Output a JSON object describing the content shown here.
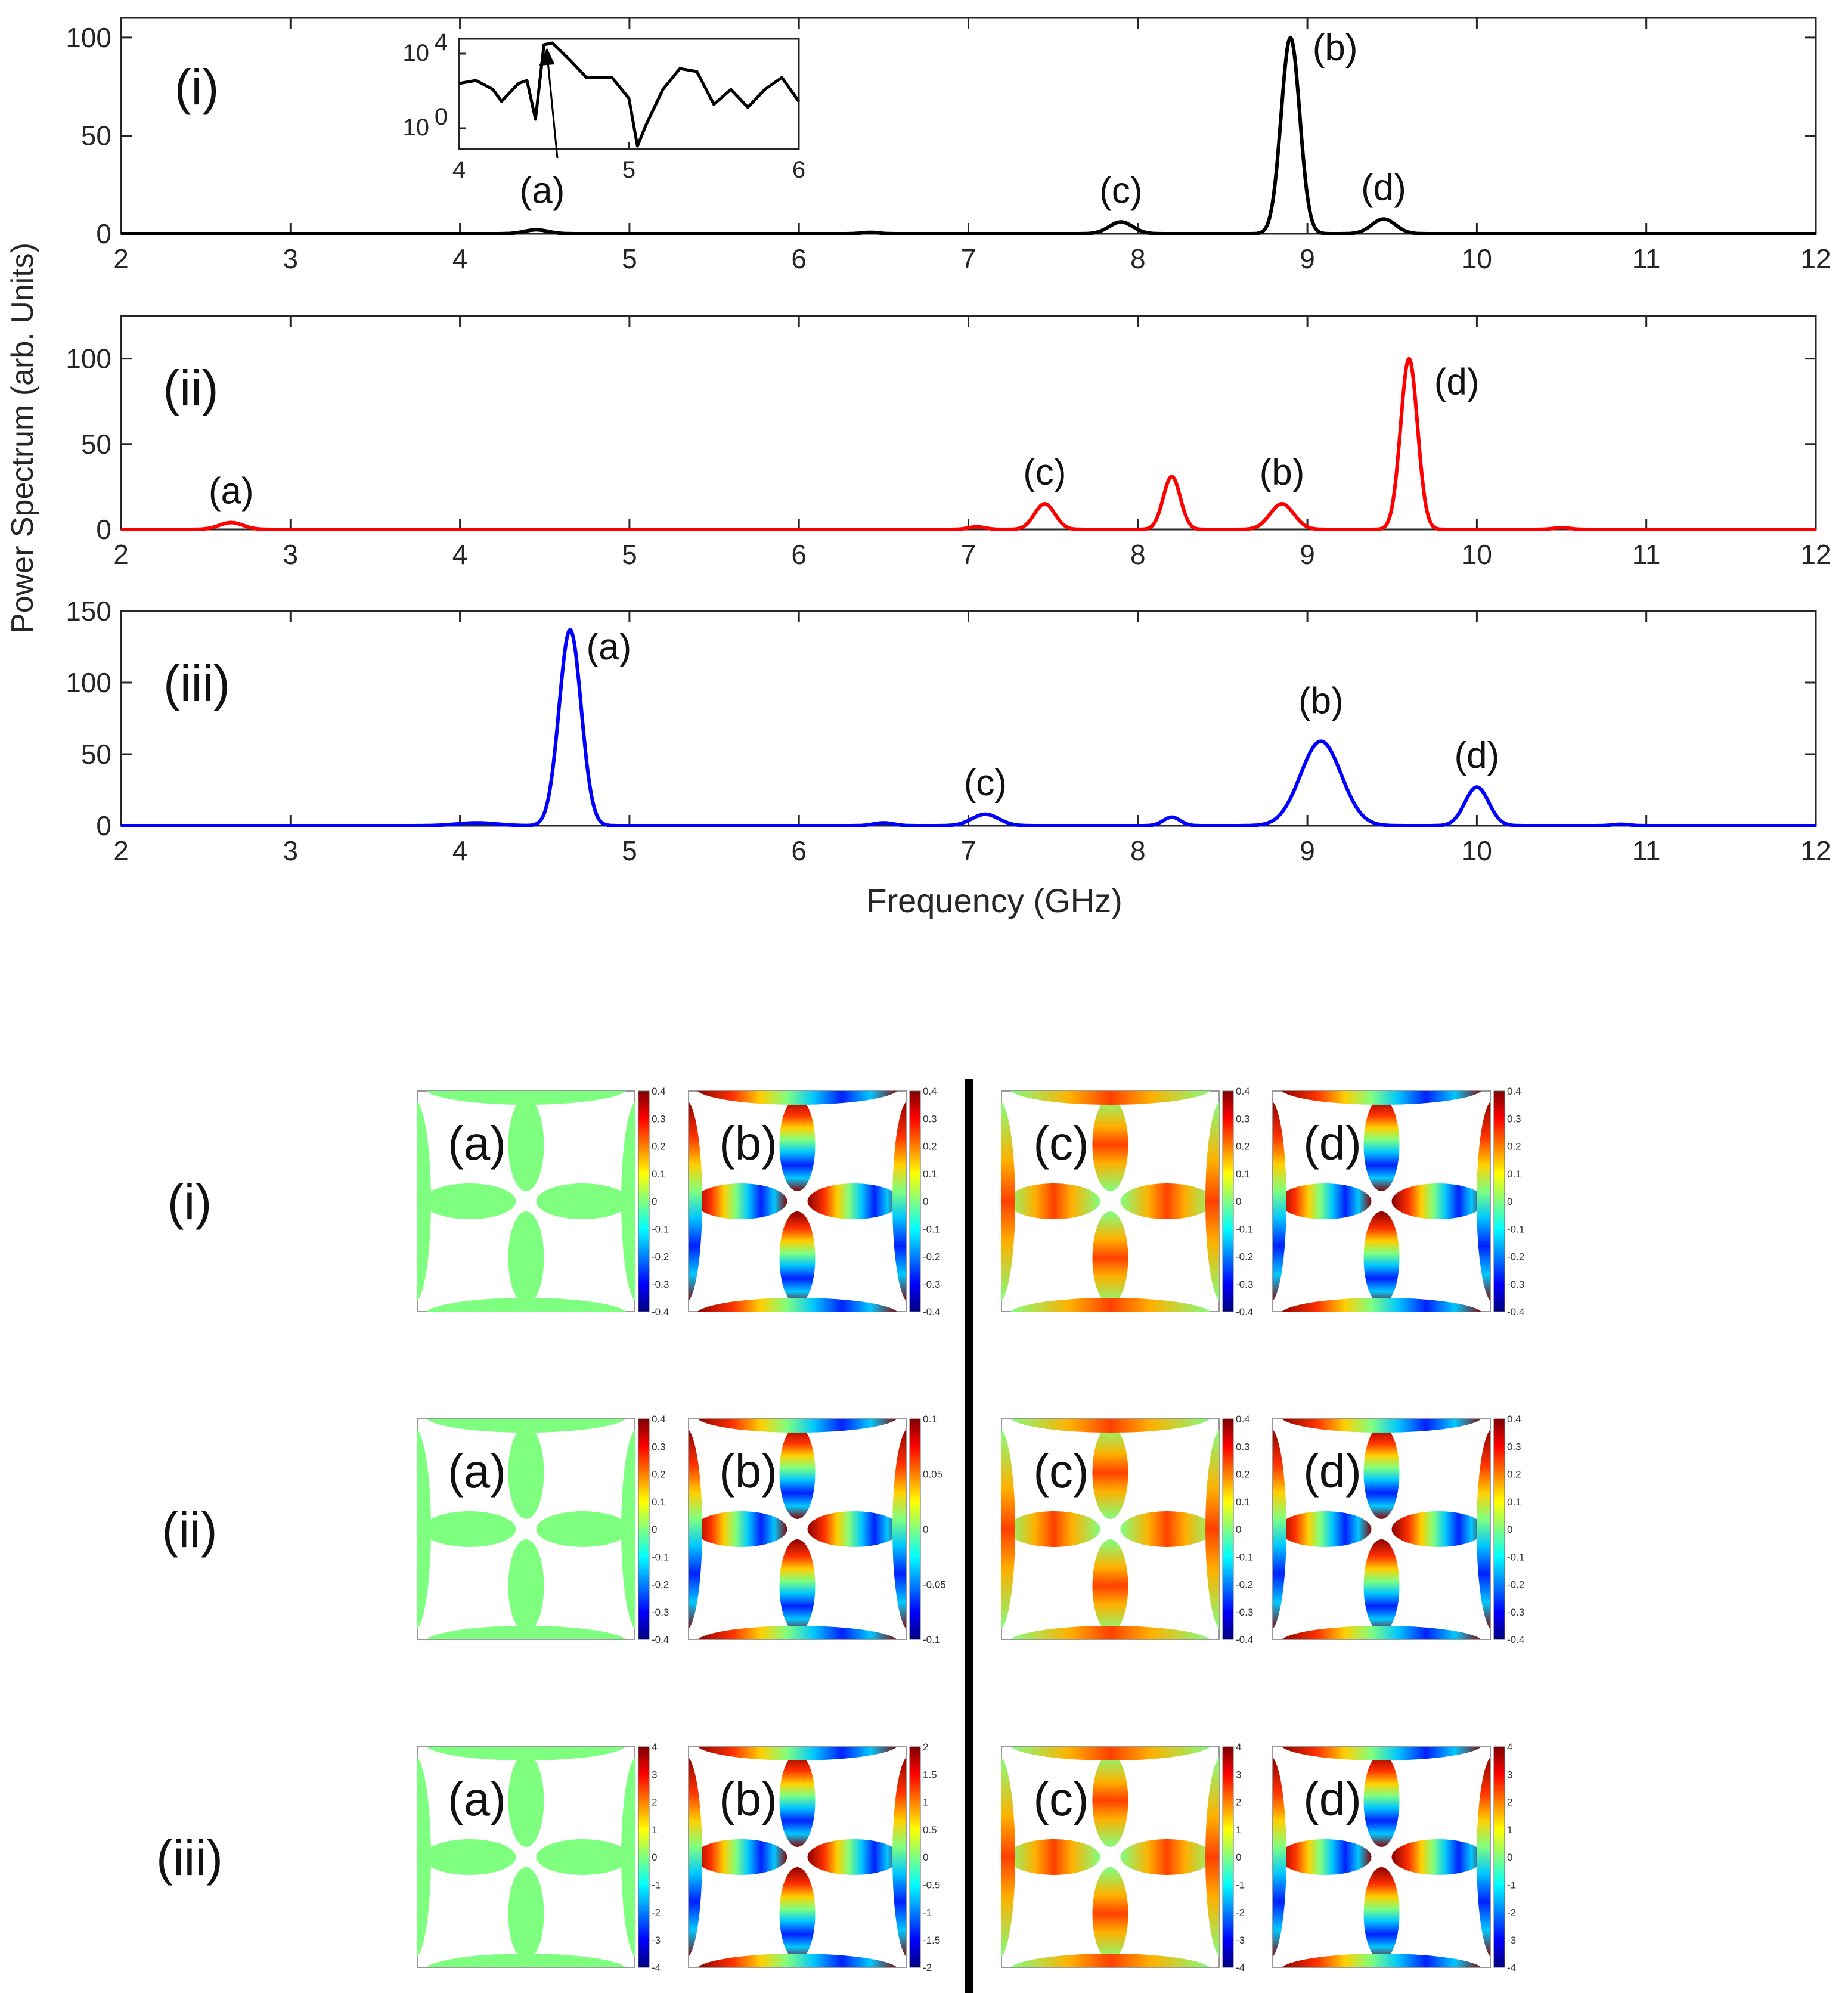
{
  "chart_data": [
    {
      "type": "line",
      "panel_label": "(i)",
      "color": "#000000",
      "xlim": [
        2,
        12
      ],
      "ylim": [
        0,
        110
      ],
      "yticks": [
        0,
        50,
        100
      ],
      "xticks": [
        2,
        3,
        4,
        5,
        6,
        7,
        8,
        9,
        10,
        11,
        12
      ],
      "peaks": [
        {
          "label": "(a)",
          "x": 4.45,
          "y": 2,
          "width": 0.07
        },
        {
          "label": "",
          "x": 6.42,
          "y": 0.7,
          "width": 0.05
        },
        {
          "label": "(c)",
          "x": 7.9,
          "y": 6,
          "width": 0.07
        },
        {
          "label": "(b)",
          "x": 8.9,
          "y": 100,
          "width": 0.055
        },
        {
          "label": "(d)",
          "x": 9.45,
          "y": 7.5,
          "width": 0.07
        }
      ],
      "inset": {
        "xlim": [
          4,
          6
        ],
        "xticks": [
          4,
          5,
          6
        ],
        "yticks": [
          "10^4",
          "10^0"
        ],
        "annotation": "(a)",
        "annotation_x": 4.5
      }
    },
    {
      "type": "line",
      "panel_label": "(ii)",
      "color": "#ff0000",
      "xlim": [
        2,
        12
      ],
      "ylim": [
        0,
        125
      ],
      "yticks": [
        0,
        50,
        100
      ],
      "xticks": [
        2,
        3,
        4,
        5,
        6,
        7,
        8,
        9,
        10,
        11,
        12
      ],
      "peaks": [
        {
          "label": "(a)",
          "x": 2.65,
          "y": 4,
          "width": 0.07
        },
        {
          "label": "",
          "x": 7.05,
          "y": 1.5,
          "width": 0.05
        },
        {
          "label": "(c)",
          "x": 7.45,
          "y": 15,
          "width": 0.06
        },
        {
          "label": "",
          "x": 8.2,
          "y": 31,
          "width": 0.05
        },
        {
          "label": "(b)",
          "x": 8.85,
          "y": 15,
          "width": 0.07
        },
        {
          "label": "(d)",
          "x": 9.6,
          "y": 100,
          "width": 0.05
        },
        {
          "label": "",
          "x": 10.5,
          "y": 1,
          "width": 0.05
        }
      ]
    },
    {
      "type": "line",
      "panel_label": "(iii)",
      "color": "#0000ff",
      "xlim": [
        2,
        12
      ],
      "ylim": [
        0,
        150
      ],
      "yticks": [
        0,
        50,
        100,
        150
      ],
      "xticks": [
        2,
        3,
        4,
        5,
        6,
        7,
        8,
        9,
        10,
        11,
        12
      ],
      "peaks": [
        {
          "label": "",
          "x": 4.1,
          "y": 2,
          "width": 0.12
        },
        {
          "label": "(a)",
          "x": 4.65,
          "y": 137,
          "width": 0.065
        },
        {
          "label": "",
          "x": 6.5,
          "y": 2,
          "width": 0.06
        },
        {
          "label": "(c)",
          "x": 7.1,
          "y": 8,
          "width": 0.08
        },
        {
          "label": "",
          "x": 8.2,
          "y": 6,
          "width": 0.05
        },
        {
          "label": "(b)",
          "x": 9.08,
          "y": 59,
          "width": 0.12
        },
        {
          "label": "(d)",
          "x": 10.0,
          "y": 27,
          "width": 0.07
        },
        {
          "label": "",
          "x": 10.85,
          "y": 1,
          "width": 0.05
        }
      ]
    }
  ],
  "axes": {
    "ylabel": "Power Spectrum (arb. Units)",
    "xlabel": "Frequency (GHz)"
  },
  "mode_maps": {
    "rows": [
      {
        "label": "(i)",
        "maps": [
          {
            "label": "(a)",
            "pattern": "flat",
            "colorbar_ticks": [
              "0.4",
              "0.3",
              "0.2",
              "0.1",
              "0",
              "-0.1",
              "-0.2",
              "-0.3",
              "-0.4"
            ]
          },
          {
            "label": "(b)",
            "pattern": "stripes",
            "colorbar_ticks": [
              "0.4",
              "0.3",
              "0.2",
              "0.1",
              "0",
              "-0.1",
              "-0.2",
              "-0.3",
              "-0.4"
            ]
          },
          {
            "label": "(c)",
            "pattern": "center",
            "colorbar_ticks": [
              "0.4",
              "0.3",
              "0.2",
              "0.1",
              "0",
              "-0.1",
              "-0.2",
              "-0.3",
              "-0.4"
            ]
          },
          {
            "label": "(d)",
            "pattern": "stripes",
            "colorbar_ticks": [
              "0.4",
              "0.3",
              "0.2",
              "0.1",
              "0",
              "-0.1",
              "-0.2",
              "-0.3",
              "-0.4"
            ]
          }
        ]
      },
      {
        "label": "(ii)",
        "maps": [
          {
            "label": "(a)",
            "pattern": "flat",
            "colorbar_ticks": [
              "0.4",
              "0.3",
              "0.2",
              "0.1",
              "0",
              "-0.1",
              "-0.2",
              "-0.3",
              "-0.4"
            ]
          },
          {
            "label": "(b)",
            "pattern": "stripes",
            "colorbar_ticks": [
              "0.1",
              "0.05",
              "0",
              "-0.05",
              "-0.1"
            ]
          },
          {
            "label": "(c)",
            "pattern": "center",
            "colorbar_ticks": [
              "0.4",
              "0.3",
              "0.2",
              "0.1",
              "0",
              "-0.1",
              "-0.2",
              "-0.3",
              "-0.4"
            ]
          },
          {
            "label": "(d)",
            "pattern": "stripes",
            "colorbar_ticks": [
              "0.4",
              "0.3",
              "0.2",
              "0.1",
              "0",
              "-0.1",
              "-0.2",
              "-0.3",
              "-0.4"
            ]
          }
        ]
      },
      {
        "label": "(iii)",
        "maps": [
          {
            "label": "(a)",
            "pattern": "flat",
            "colorbar_ticks": [
              "4",
              "3",
              "2",
              "1",
              "0",
              "-1",
              "-2",
              "-3",
              "-4"
            ]
          },
          {
            "label": "(b)",
            "pattern": "stripes",
            "colorbar_ticks": [
              "2",
              "1.5",
              "1",
              "0.5",
              "0",
              "-0.5",
              "-1",
              "-1.5",
              "-2"
            ]
          },
          {
            "label": "(c)",
            "pattern": "center",
            "colorbar_ticks": [
              "4",
              "3",
              "2",
              "1",
              "0",
              "-1",
              "-2",
              "-3",
              "-4"
            ]
          },
          {
            "label": "(d)",
            "pattern": "stripes",
            "colorbar_ticks": [
              "4",
              "3",
              "2",
              "1",
              "0",
              "-1",
              "-2",
              "-3",
              "-4"
            ]
          }
        ]
      }
    ]
  }
}
